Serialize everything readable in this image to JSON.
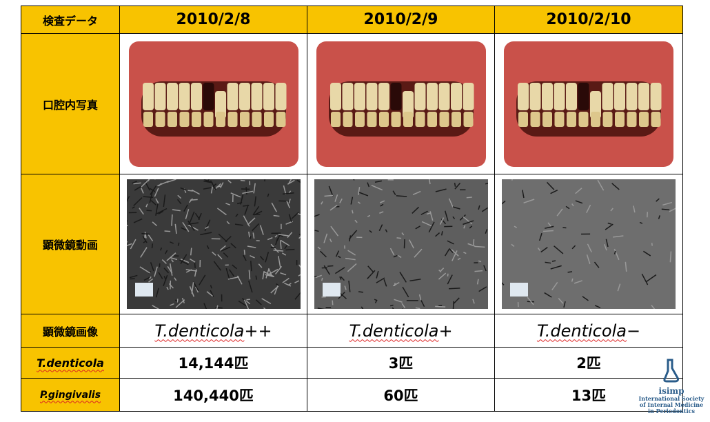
{
  "table": {
    "header": [
      "検査データ",
      "2010/2/8",
      "2010/2/9",
      "2010/2/10"
    ],
    "photo_row": {
      "label": "口腔内写真"
    },
    "video_row": {
      "label": "顕微鏡動画"
    },
    "image_row": {
      "label": "顕微鏡画像",
      "cells": [
        {
          "name": "T.denticola",
          "grade": "++"
        },
        {
          "name": "T.denticola",
          "grade": "+"
        },
        {
          "name": "T.denticola",
          "grade": "−"
        }
      ]
    },
    "count_rows": [
      {
        "label": "T.denticola",
        "cells": [
          "14,144匹",
          "3匹",
          "2匹"
        ]
      },
      {
        "label": "P.gingivalis",
        "cells": [
          "140,440匹",
          "60匹",
          "13匹"
        ]
      }
    ]
  },
  "logo": {
    "name": "isimp",
    "lines": [
      "International Society",
      "of Internal Medicine",
      "in Periodontics"
    ]
  }
}
